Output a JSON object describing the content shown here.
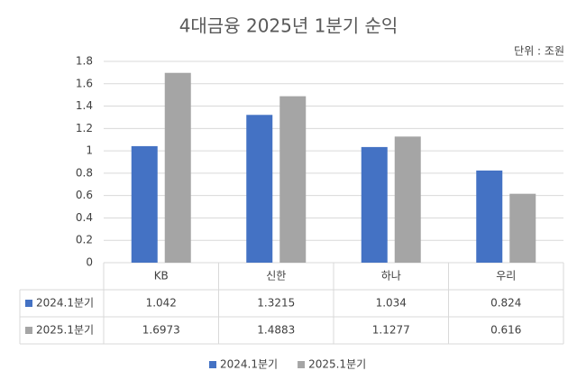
{
  "chart_data": {
    "type": "bar",
    "title": "4대금융 2025년 1분기 순익",
    "unit_note": "단위 : 조원",
    "categories": [
      "KB",
      "신한",
      "하나",
      "우리"
    ],
    "series": [
      {
        "name": "2024.1분기",
        "color": "#4472c4",
        "values": [
          1.042,
          1.3215,
          1.034,
          0.824
        ]
      },
      {
        "name": "2025.1분기",
        "color": "#a5a5a5",
        "values": [
          1.6973,
          1.4883,
          1.1277,
          0.616
        ]
      }
    ],
    "ylim": [
      0,
      1.8
    ],
    "yticks": [
      0,
      0.2,
      0.4,
      0.6,
      0.8,
      1,
      1.2,
      1.4,
      1.6,
      1.8
    ],
    "grid": true,
    "data_table": true,
    "legend": "bottom"
  }
}
